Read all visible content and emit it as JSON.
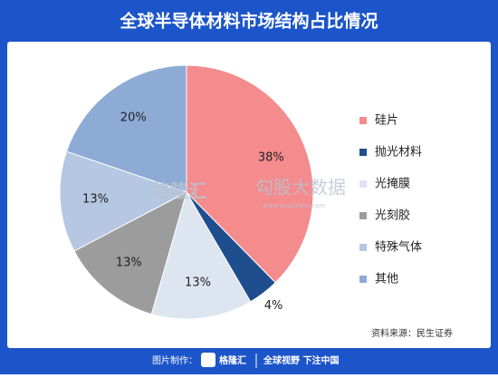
{
  "chart_data": {
    "type": "pie",
    "title": "全球半导体材料市场结构占比情况",
    "categories": [
      "硅片",
      "抛光材料",
      "光掩膜",
      "光刻胶",
      "特殊气体",
      "其他"
    ],
    "values": [
      38,
      4,
      13,
      13,
      13,
      20
    ],
    "value_labels": [
      "38%",
      "4%",
      "13%",
      "13%",
      "13%",
      "20%"
    ],
    "colors": [
      "#f48b8d",
      "#1f4e8f",
      "#dde5f1",
      "#9c9c9c",
      "#b5c7e2",
      "#8eabd6"
    ],
    "legend": "right",
    "source": "资料来源：民生证券",
    "watermark": [
      "格隆汇",
      "勾股大数据",
      "www.gogudata.com"
    ],
    "footer": [
      "图片制作：",
      "格隆汇",
      "全球视野 下注中国"
    ]
  }
}
